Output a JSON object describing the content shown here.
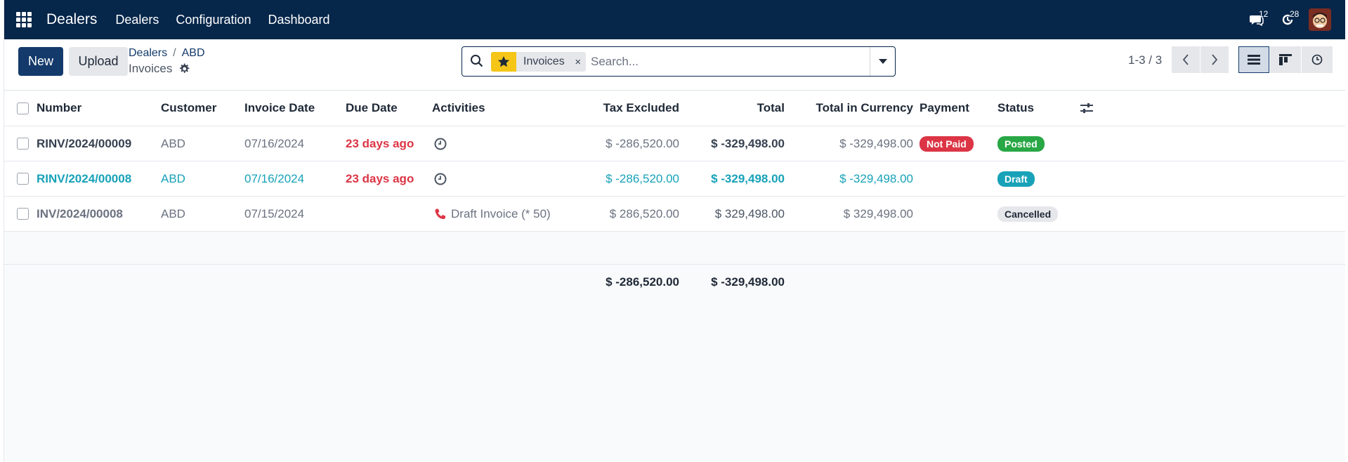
{
  "navbar": {
    "brand": "Dealers",
    "menu": [
      "Dealers",
      "Configuration",
      "Dashboard"
    ],
    "messages_count": "12",
    "activities_count": "28"
  },
  "control": {
    "new_label": "New",
    "upload_label": "Upload",
    "breadcrumb": [
      "Dealers",
      "ABD"
    ],
    "breadcrumb_sep": "/",
    "current_title": "Invoices",
    "search_facet": "Invoices",
    "search_facet_remove": "×",
    "search_placeholder": "Search...",
    "pager": "1-3 / 3"
  },
  "table": {
    "columns": [
      "Number",
      "Customer",
      "Invoice Date",
      "Due Date",
      "Activities",
      "Tax Excluded",
      "Total",
      "Total in Currency",
      "Payment",
      "Status"
    ],
    "rows": [
      {
        "number": "RINV/2024/00009",
        "customer": "ABD",
        "invoice_date": "07/16/2024",
        "due_date": "23 days ago",
        "activity": "",
        "tax_excluded": "$ -286,520.00",
        "total": "$ -329,498.00",
        "total_currency": "$ -329,498.00",
        "payment": "Not Paid",
        "status": "Posted"
      },
      {
        "number": "RINV/2024/00008",
        "customer": "ABD",
        "invoice_date": "07/16/2024",
        "due_date": "23 days ago",
        "activity": "",
        "tax_excluded": "$ -286,520.00",
        "total": "$ -329,498.00",
        "total_currency": "$ -329,498.00",
        "payment": "",
        "status": "Draft"
      },
      {
        "number": "INV/2024/00008",
        "customer": "ABD",
        "invoice_date": "07/15/2024",
        "due_date": "",
        "activity": "Draft Invoice (* 50)",
        "tax_excluded": "$ 286,520.00",
        "total": "$ 329,498.00",
        "total_currency": "$ 329,498.00",
        "payment": "",
        "status": "Cancelled"
      }
    ],
    "totals": {
      "tax_excluded": "$ -286,520.00",
      "total": "$ -329,498.00"
    }
  },
  "colors": {
    "navbar": "#06264a",
    "primary": "#143a6b",
    "overdue": "#dc3545",
    "draft_row": "#17a2b8",
    "posted": "#28a745"
  }
}
